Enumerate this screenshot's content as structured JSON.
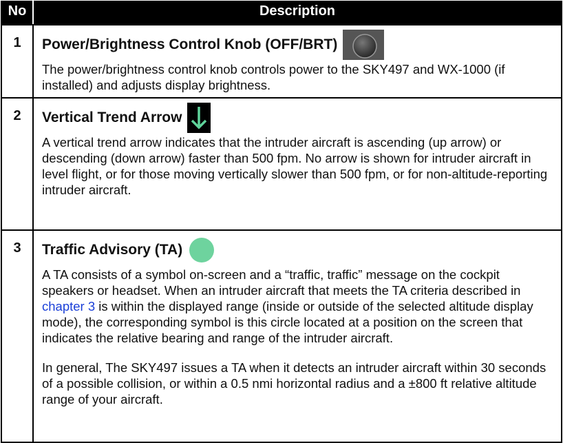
{
  "table": {
    "header": [
      "No",
      "Description"
    ],
    "rows": [
      {
        "number": "1",
        "title": "Power/Brightness Control Knob (OFF/BRT)",
        "paragraphs": [
          "The power/brightness control knob controls power to the SKY497 and WX-1000 (if installed) and adjusts display brightness."
        ]
      },
      {
        "number": "2",
        "title": "Vertical Trend Arrow",
        "paragraphs": [
          "A vertical trend arrow indicates that the intruder aircraft is ascending (up arrow) or descending (down arrow) faster than 500 fpm. No arrow is shown for intruder aircraft in level flight, or for those moving vertically slower than 500 fpm, or for non-altitude-reporting intruder aircraft."
        ]
      },
      {
        "number": "3",
        "title": "Traffic Advisory (TA)",
        "paragraph_1": {
          "before": "A TA consists of a symbol on-screen and a “traffic, traffic” message on the cockpit speakers or headset. When an intruder aircraft that meets the TA criteria described in ",
          "link": "chapter 3",
          "after": " is within the displayed range (inside or outside of the selected altitude display mode), the corresponding symbol is this circle located at a position on the screen that indicates the relative bearing and range of the intruder aircraft."
        },
        "paragraph_2": "In general, The SKY497 issues a TA when it detects an intruder aircraft within 30 seconds of a possible collision, or within a 0.5 nmi horizontal radius and a ±800 ft relative altitude range of your aircraft."
      }
    ]
  }
}
